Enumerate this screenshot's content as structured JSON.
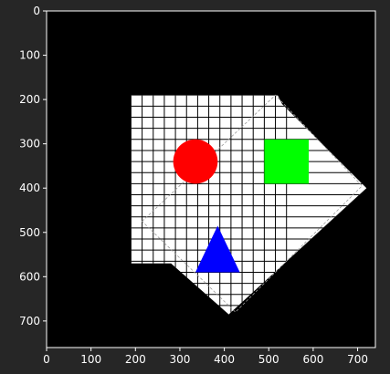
{
  "chart_data": {
    "type": "image",
    "title": "",
    "xlabel": "",
    "ylabel": "",
    "xlim": [
      0,
      740
    ],
    "ylim": [
      760,
      0
    ],
    "x_ticks": [
      0,
      100,
      200,
      300,
      400,
      500,
      600,
      700
    ],
    "y_ticks": [
      0,
      100,
      200,
      300,
      400,
      500,
      600,
      700
    ],
    "grid": false,
    "colors": {
      "background": "#000000",
      "paper": "#ffffff",
      "grid_lines": "#000000",
      "circle": "#ff0000",
      "square": "#00ff00",
      "triangle": "#0000ff",
      "axes_text": "#ffffff",
      "figure_bg": "#262626"
    },
    "image_content": {
      "paper_polygon": [
        [
          190,
          190
        ],
        [
          520,
          190
        ],
        [
          530,
          210
        ],
        [
          720,
          400
        ],
        [
          410,
          685
        ],
        [
          280,
          570
        ],
        [
          190,
          570
        ]
      ],
      "dashed_rect": [
        [
          215,
          475
        ],
        [
          515,
          190
        ],
        [
          710,
          395
        ],
        [
          425,
          680
        ]
      ],
      "grid": {
        "x_start": 190,
        "x_end": 540,
        "x_step": 25,
        "y_start": 190,
        "y_end": 690,
        "y_step": 25
      },
      "circle": {
        "cx": 335,
        "cy": 340,
        "r": 50
      },
      "square": {
        "x": 490,
        "y": 290,
        "w": 100,
        "h": 100
      },
      "triangle": [
        [
          385,
          485
        ],
        [
          335,
          590
        ],
        [
          435,
          590
        ]
      ]
    }
  }
}
